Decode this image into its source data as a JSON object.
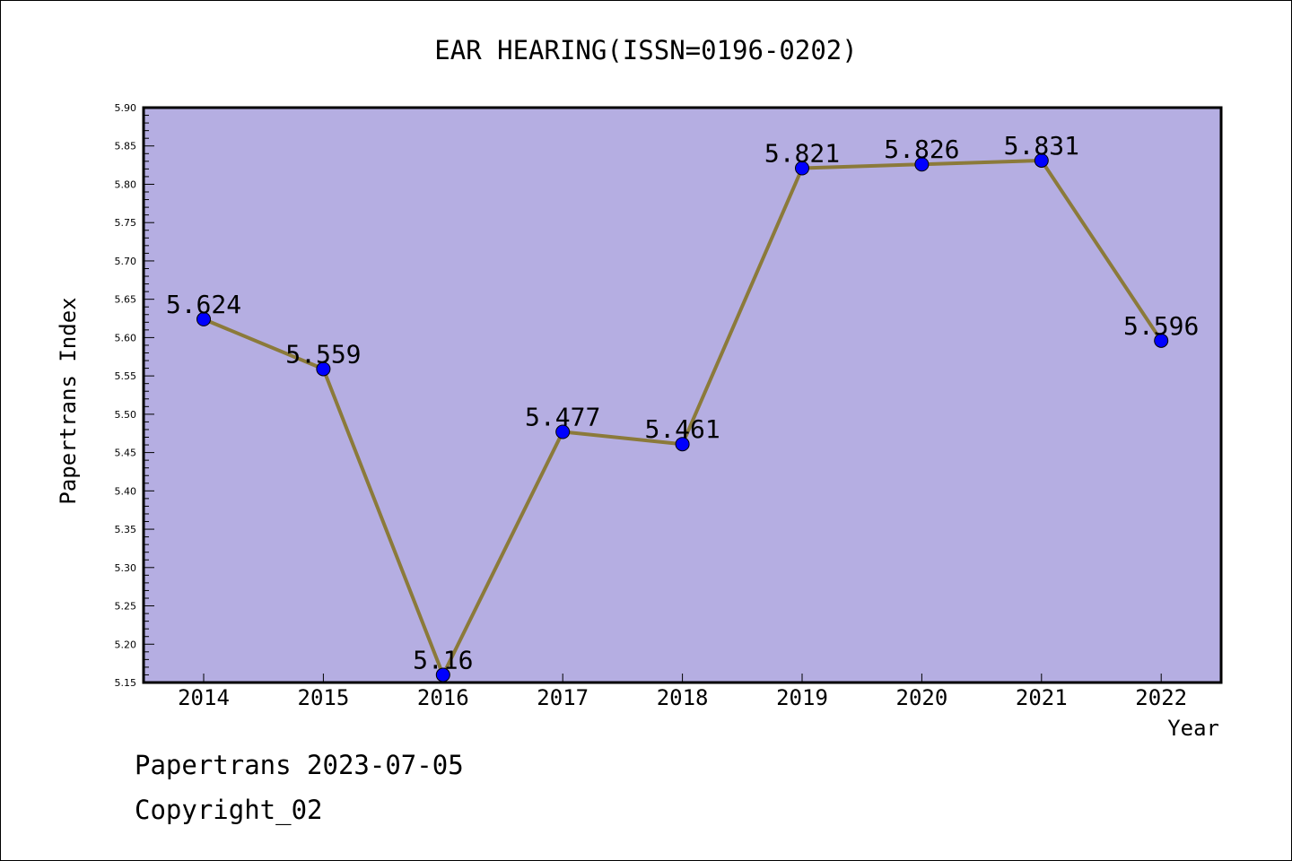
{
  "chart_data": {
    "type": "line",
    "title": "EAR HEARING(ISSN=0196-0202)",
    "xlabel": "Year",
    "ylabel": "Papertrans Index",
    "categories": [
      "2014",
      "2015",
      "2016",
      "2017",
      "2018",
      "2019",
      "2020",
      "2021",
      "2022"
    ],
    "values": [
      5.624,
      5.559,
      5.16,
      5.477,
      5.461,
      5.821,
      5.826,
      5.831,
      5.596
    ],
    "data_labels": [
      "5.624",
      "5.559",
      "5.16",
      "5.477",
      "5.461",
      "5.821",
      "5.826",
      "5.831",
      "5.596"
    ],
    "ylim": [
      5.15,
      5.9
    ],
    "yticks": [
      "5.15",
      "5.20",
      "5.25",
      "5.30",
      "5.35",
      "5.40",
      "5.45",
      "5.50",
      "5.55",
      "5.60",
      "5.65",
      "5.70",
      "5.75",
      "5.80",
      "5.85",
      "5.90"
    ],
    "grid": false,
    "legend": "none",
    "colors": {
      "plot_background": "#b5aee2",
      "line": "#8b7a3a",
      "marker": "#0000ff",
      "axis": "#000000"
    }
  },
  "footer": {
    "line1": "Papertrans 2023-07-05",
    "line2": "Copyright_02"
  }
}
